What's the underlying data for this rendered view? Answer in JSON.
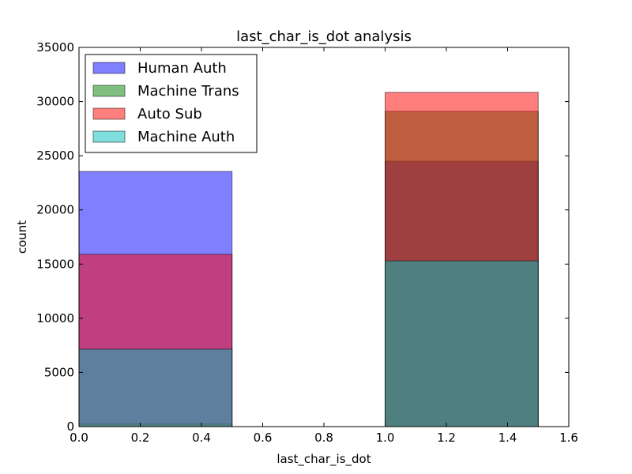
{
  "chart_data": {
    "type": "bar",
    "title": "last_char_is_dot analysis",
    "xlabel": "last_char_is_dot",
    "ylabel": "count",
    "xlim": [
      0.0,
      1.6
    ],
    "ylim": [
      0,
      35000
    ],
    "xticks": [
      "0.0",
      "0.2",
      "0.4",
      "0.6",
      "0.8",
      "1.0",
      "1.2",
      "1.4",
      "1.6"
    ],
    "yticks": [
      "0",
      "5000",
      "10000",
      "15000",
      "20000",
      "25000",
      "30000",
      "35000"
    ],
    "bins": [
      {
        "x_start": 0.0,
        "x_end": 0.5
      },
      {
        "x_start": 1.0,
        "x_end": 1.5
      }
    ],
    "series": [
      {
        "name": "Human Auth",
        "color": "#0000ff",
        "values": [
          23550,
          24500
        ]
      },
      {
        "name": "Machine Trans",
        "color": "#008000",
        "values": [
          250,
          29100
        ]
      },
      {
        "name": "Auto Sub",
        "color": "#ff0000",
        "values": [
          15900,
          30850
        ]
      },
      {
        "name": "Machine Auth",
        "color": "#00bfbf",
        "values": [
          7150,
          15300
        ]
      }
    ],
    "bar_opacity": 0.5,
    "grid": false,
    "legend_position": "top-left"
  }
}
